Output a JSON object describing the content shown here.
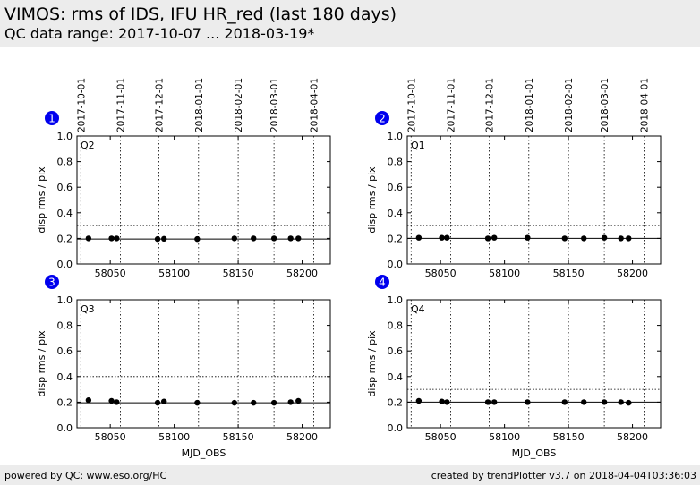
{
  "header": {
    "title": "VIMOS: rms of IDS, IFU HR_red (last 180 days)",
    "subtitle": "QC data range: 2017-10-07 ... 2018-03-19*"
  },
  "footer": {
    "left": "powered by QC: www.eso.org/HC",
    "right": "created by trendPlotter v3.7 on 2018-04-04T03:36:03"
  },
  "colors": {
    "badge": "#0000ee",
    "data": "#000000",
    "header_bg": "#ececec"
  },
  "chart_data": {
    "type": "scatter",
    "xlabel": "MJD_OBS",
    "ylabel": "disp rms / pix",
    "xlim": [
      58024,
      58222
    ],
    "ylim": [
      0.0,
      1.0
    ],
    "xticks": [
      58050,
      58100,
      58150,
      58200
    ],
    "xtick_labels": [
      "58050",
      "58100",
      "58150",
      "58200"
    ],
    "yticks": [
      0.0,
      0.2,
      0.4,
      0.6,
      0.8,
      1.0
    ],
    "ytick_labels": [
      "0.0",
      "0.2",
      "0.4",
      "0.6",
      "0.8",
      "1.0"
    ],
    "date_ticks": [
      {
        "label": "2017-10-01",
        "mjd": 58027
      },
      {
        "label": "2017-11-01",
        "mjd": 58058
      },
      {
        "label": "2017-12-01",
        "mjd": 58088
      },
      {
        "label": "2018-01-01",
        "mjd": 58119
      },
      {
        "label": "2018-02-01",
        "mjd": 58150
      },
      {
        "label": "2018-03-01",
        "mjd": 58178
      },
      {
        "label": "2018-04-01",
        "mjd": 58209
      }
    ],
    "panels": [
      {
        "badge": "1",
        "label": "Q2",
        "reference": 0.195,
        "threshold": 0.3,
        "x": [
          58033,
          58051,
          58055,
          58087,
          58092,
          58118,
          58147,
          58162,
          58178,
          58191,
          58197
        ],
        "y": [
          0.2,
          0.2,
          0.2,
          0.195,
          0.197,
          0.195,
          0.2,
          0.2,
          0.2,
          0.2,
          0.2
        ]
      },
      {
        "badge": "2",
        "label": "Q1",
        "reference": 0.2,
        "threshold": 0.3,
        "x": [
          58033,
          58051,
          58055,
          58087,
          58092,
          58118,
          58147,
          58162,
          58178,
          58191,
          58197
        ],
        "y": [
          0.205,
          0.205,
          0.205,
          0.2,
          0.205,
          0.205,
          0.2,
          0.2,
          0.205,
          0.2,
          0.2
        ]
      },
      {
        "badge": "3",
        "label": "Q3",
        "reference": 0.195,
        "threshold": 0.4,
        "x": [
          58033,
          58051,
          58055,
          58087,
          58092,
          58118,
          58147,
          58162,
          58178,
          58191,
          58197
        ],
        "y": [
          0.215,
          0.21,
          0.2,
          0.195,
          0.205,
          0.195,
          0.195,
          0.195,
          0.195,
          0.2,
          0.21
        ]
      },
      {
        "badge": "4",
        "label": "Q4",
        "reference": 0.2,
        "threshold": 0.3,
        "x": [
          58033,
          58051,
          58055,
          58087,
          58092,
          58118,
          58147,
          58162,
          58178,
          58191,
          58197
        ],
        "y": [
          0.21,
          0.205,
          0.2,
          0.2,
          0.2,
          0.2,
          0.2,
          0.2,
          0.2,
          0.2,
          0.195
        ]
      }
    ]
  }
}
